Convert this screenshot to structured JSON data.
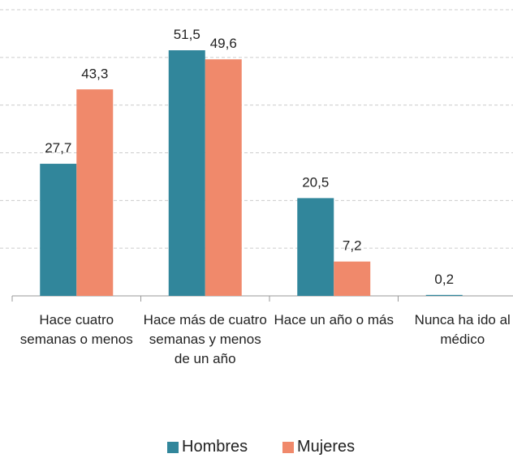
{
  "chart_data": {
    "type": "bar",
    "categories": [
      "Hace cuatro semanas o menos",
      "Hace más de cuatro semanas y menos de un año",
      "Hace un año o más",
      "Nunca ha ido al médico"
    ],
    "series": [
      {
        "name": "Hombres",
        "color": "#31869b",
        "values": [
          27.7,
          51.5,
          20.5,
          0.2
        ],
        "value_labels": [
          "27,7",
          "51,5",
          "20,5",
          "0,2"
        ]
      },
      {
        "name": "Mujeres",
        "color": "#f0896b",
        "values": [
          43.3,
          49.6,
          7.2,
          null
        ],
        "value_labels": [
          "43,3",
          "49,6",
          "7,2",
          null
        ]
      }
    ],
    "ylim": [
      0,
      60
    ],
    "yticks": [
      0,
      10,
      20,
      30,
      40,
      50,
      60
    ],
    "grid": true,
    "legend": "bottom"
  }
}
